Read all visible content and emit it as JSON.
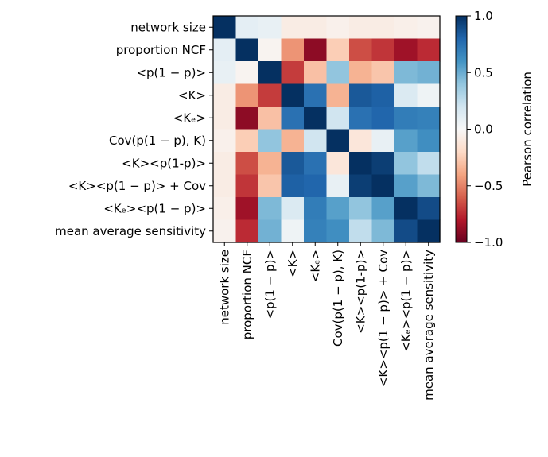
{
  "chart_data": {
    "type": "heatmap",
    "title": "",
    "xlabel": "",
    "ylabel": "",
    "labels": [
      "network size",
      "proportion NCF",
      "<p(1 − p)>",
      "<K>",
      "<Kₑ>",
      "Cov(p(1 − p), K)",
      "<K><p(1-p)>",
      "<K><p(1 − p)> + Cov",
      "<Kₑ><p(1 − p)>",
      "mean average sensitivity"
    ],
    "matrix": [
      [
        1.0,
        0.1,
        0.08,
        -0.08,
        -0.08,
        -0.05,
        -0.08,
        -0.08,
        -0.06,
        -0.04
      ],
      [
        0.1,
        1.0,
        -0.03,
        -0.45,
        -0.9,
        -0.25,
        -0.65,
        -0.72,
        -0.85,
        -0.75
      ],
      [
        0.08,
        -0.03,
        1.0,
        -0.7,
        -0.3,
        0.4,
        -0.35,
        -0.28,
        0.45,
        0.48
      ],
      [
        -0.08,
        -0.45,
        -0.7,
        1.0,
        0.75,
        -0.35,
        0.85,
        0.82,
        0.15,
        0.05
      ],
      [
        -0.08,
        -0.9,
        -0.3,
        0.75,
        1.0,
        0.2,
        0.75,
        0.8,
        0.7,
        0.68
      ],
      [
        -0.05,
        -0.25,
        0.4,
        -0.35,
        0.2,
        1.0,
        -0.12,
        0.08,
        0.55,
        0.62
      ],
      [
        -0.08,
        -0.65,
        -0.35,
        0.85,
        0.75,
        -0.12,
        1.0,
        0.95,
        0.4,
        0.25
      ],
      [
        -0.08,
        -0.72,
        -0.28,
        0.82,
        0.8,
        0.08,
        0.95,
        1.0,
        0.55,
        0.45
      ],
      [
        -0.06,
        -0.85,
        0.45,
        0.15,
        0.7,
        0.55,
        0.4,
        0.55,
        1.0,
        0.9
      ],
      [
        -0.04,
        -0.75,
        0.48,
        0.05,
        0.68,
        0.62,
        0.25,
        0.45,
        0.9,
        1.0
      ]
    ],
    "colorbar": {
      "label": "Pearson correlation",
      "range": [
        -1.0,
        1.0
      ],
      "ticks": [
        {
          "value": 1.0,
          "label": "1.0"
        },
        {
          "value": 0.5,
          "label": "0.5"
        },
        {
          "value": 0.0,
          "label": "0.0"
        },
        {
          "value": -0.5,
          "label": "−0.5"
        },
        {
          "value": -1.0,
          "label": "−1.0"
        }
      ],
      "colormap": [
        "#67001f",
        "#b2182b",
        "#d6604d",
        "#f4a582",
        "#fddbc7",
        "#f7f7f7",
        "#d1e5f0",
        "#92c5de",
        "#4393c3",
        "#2166ac",
        "#053061"
      ]
    }
  }
}
